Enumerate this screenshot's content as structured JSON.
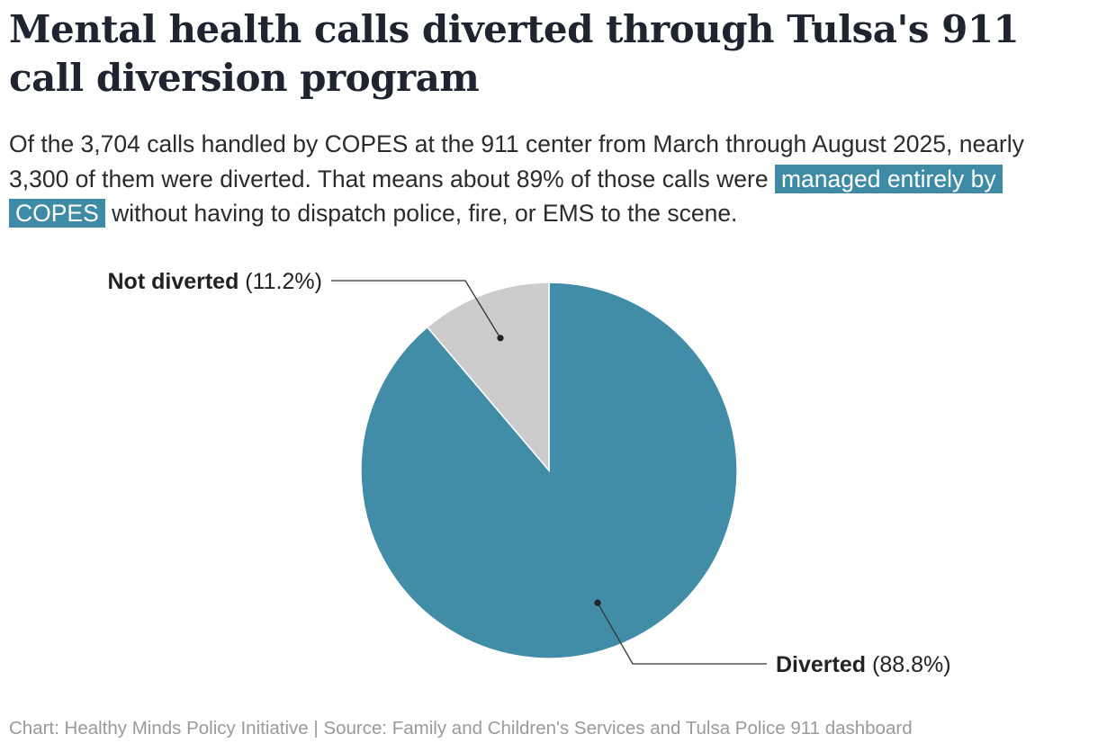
{
  "header": {
    "title": "Mental health calls diverted through Tulsa's 911 call diversion program",
    "subtitle_part1": "Of the 3,704 calls handled by COPES at the 911 center from March through August 2025, nearly 3,300 of them were diverted. That means about 89% of those calls were",
    "subtitle_highlight": "managed entirely by COPES",
    "subtitle_part2": "without having to dispatch police, fire, or EMS to the scene."
  },
  "footer": {
    "credit": "Chart: Healthy Minds Policy Initiative | Source: Family and Children's Services and Tulsa Police 911 dashboard"
  },
  "colors": {
    "diverted": "#418ca7",
    "not_diverted": "#cccccc",
    "highlight": "#3f8ba6",
    "leader_line": "#333333"
  },
  "chart_data": {
    "type": "pie",
    "title": "Mental health calls diverted through Tulsa's 911 call diversion program",
    "slices": [
      {
        "label": "Diverted",
        "value": 88.8,
        "display": "(88.8%)",
        "color": "#418ca7"
      },
      {
        "label": "Not diverted",
        "value": 11.2,
        "display": "(11.2%)",
        "color": "#cccccc"
      }
    ]
  }
}
